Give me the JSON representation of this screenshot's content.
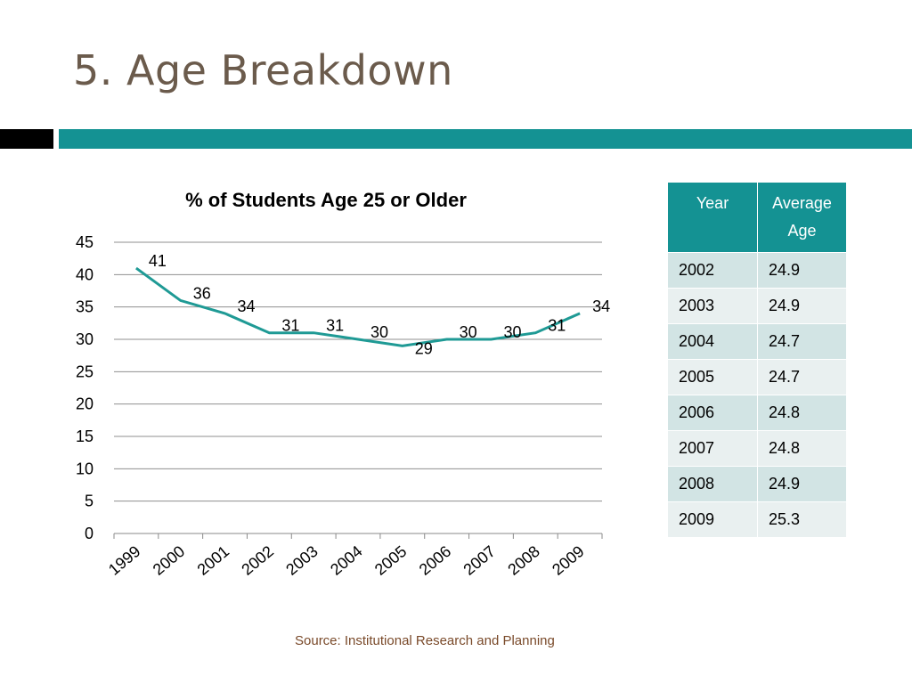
{
  "slide": {
    "title": "5. Age Breakdown",
    "source": "Source: Institutional Research and Planning"
  },
  "colors": {
    "accent": "#149293",
    "title": "#6b5b4c",
    "band_dark": "#000000"
  },
  "chart_data": {
    "type": "line",
    "title": "% of Students Age 25 or Older",
    "categories": [
      "1999",
      "2000",
      "2001",
      "2002",
      "2003",
      "2004",
      "2005",
      "2006",
      "2007",
      "2008",
      "2009"
    ],
    "series": [
      {
        "values": [
          41,
          36,
          34,
          31,
          31,
          30,
          29,
          30,
          30,
          31,
          34
        ]
      }
    ],
    "ylim": [
      0,
      45
    ],
    "yticks": [
      0,
      5,
      10,
      15,
      20,
      25,
      30,
      35,
      40,
      45
    ],
    "grid": true,
    "data_labels": true,
    "line_color": "#1f9a95"
  },
  "table": {
    "headers": [
      "Year",
      "Average Age"
    ],
    "rows": [
      [
        "2002",
        "24.9"
      ],
      [
        "2003",
        "24.9"
      ],
      [
        "2004",
        "24.7"
      ],
      [
        "2005",
        "24.7"
      ],
      [
        "2006",
        "24.8"
      ],
      [
        "2007",
        "24.8"
      ],
      [
        "2008",
        "24.9"
      ],
      [
        "2009",
        "25.3"
      ]
    ]
  }
}
